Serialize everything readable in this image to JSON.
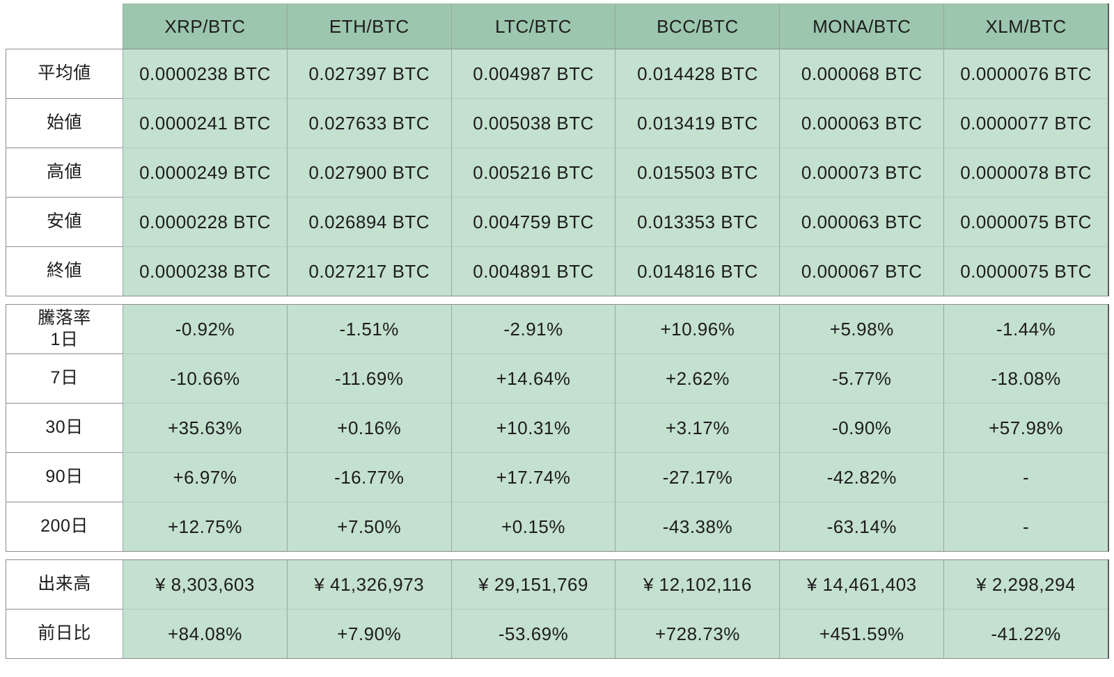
{
  "chart_data": {
    "type": "table",
    "columns": [
      "XRP/BTC",
      "ETH/BTC",
      "LTC/BTC",
      "BCC/BTC",
      "MONA/BTC",
      "XLM/BTC"
    ],
    "sections": [
      {
        "name": "price-stats",
        "rows": [
          {
            "label": "平均値",
            "values": [
              "0.0000238 BTC",
              "0.027397 BTC",
              "0.004987 BTC",
              "0.014428 BTC",
              "0.000068 BTC",
              "0.0000076 BTC"
            ]
          },
          {
            "label": "始値",
            "values": [
              "0.0000241 BTC",
              "0.027633 BTC",
              "0.005038 BTC",
              "0.013419 BTC",
              "0.000063 BTC",
              "0.0000077 BTC"
            ]
          },
          {
            "label": "高値",
            "values": [
              "0.0000249 BTC",
              "0.027900 BTC",
              "0.005216 BTC",
              "0.015503 BTC",
              "0.000073 BTC",
              "0.0000078 BTC"
            ]
          },
          {
            "label": "安値",
            "values": [
              "0.0000228 BTC",
              "0.026894 BTC",
              "0.004759 BTC",
              "0.013353 BTC",
              "0.000063 BTC",
              "0.0000075 BTC"
            ]
          },
          {
            "label": "終値",
            "values": [
              "0.0000238 BTC",
              "0.027217 BTC",
              "0.004891 BTC",
              "0.014816 BTC",
              "0.000067 BTC",
              "0.0000075 BTC"
            ]
          }
        ]
      },
      {
        "name": "change-rates",
        "rows": [
          {
            "label": "騰落率\n1日",
            "values": [
              "-0.92%",
              "-1.51%",
              "-2.91%",
              "+10.96%",
              "+5.98%",
              "-1.44%"
            ]
          },
          {
            "label": "7日",
            "values": [
              "-10.66%",
              "-11.69%",
              "+14.64%",
              "+2.62%",
              "-5.77%",
              "-18.08%"
            ]
          },
          {
            "label": "30日",
            "values": [
              "+35.63%",
              "+0.16%",
              "+10.31%",
              "+3.17%",
              "-0.90%",
              "+57.98%"
            ]
          },
          {
            "label": "90日",
            "values": [
              "+6.97%",
              "-16.77%",
              "+17.74%",
              "-27.17%",
              "-42.82%",
              "-"
            ]
          },
          {
            "label": "200日",
            "values": [
              "+12.75%",
              "+7.50%",
              "+0.15%",
              "-43.38%",
              "-63.14%",
              "-"
            ]
          }
        ]
      },
      {
        "name": "volume-stats",
        "rows": [
          {
            "label": "出来高",
            "values": [
              "¥ 8,303,603",
              "¥ 41,326,973",
              "¥ 29,151,769",
              "¥ 12,102,116",
              "¥ 14,461,403",
              "¥ 2,298,294"
            ]
          },
          {
            "label": "前日比",
            "values": [
              "+84.08%",
              "+7.90%",
              "-53.69%",
              "+728.73%",
              "+451.59%",
              "-41.22%"
            ]
          }
        ]
      }
    ],
    "title": "",
    "layout": {
      "header_position": "top",
      "label_column_position": "left"
    }
  },
  "colors": {
    "header_bg": "#9cc6ad",
    "cell_bg": "#c4e0cf",
    "label_bg": "#ffffff",
    "text": "#1c1c1c"
  }
}
